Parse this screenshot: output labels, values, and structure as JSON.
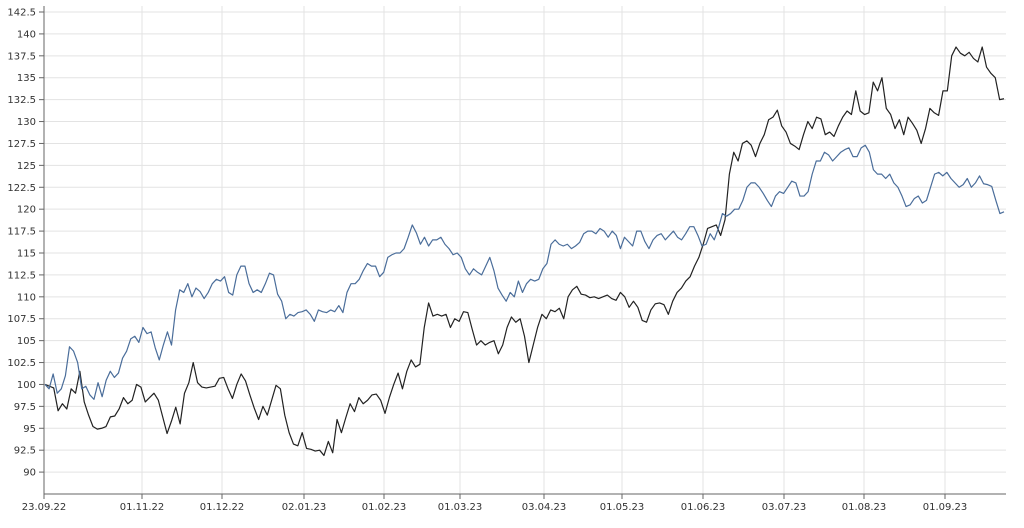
{
  "chart_data": {
    "type": "line",
    "title": "",
    "xlabel": "",
    "ylabel": "",
    "ylim": [
      87.5,
      142.5
    ],
    "yticks": [
      "142.5",
      "140",
      "137.5",
      "135",
      "132.5",
      "130",
      "127.5",
      "125",
      "122.5",
      "120",
      "117.5",
      "115",
      "112.5",
      "110",
      "107.5",
      "105",
      "102.5",
      "100",
      "97.5",
      "95",
      "92.5",
      "90"
    ],
    "xticks": [
      "23.09.22",
      "01.11.22",
      "01.12.22",
      "02.01.23",
      "01.02.23",
      "01.03.23",
      "03.04.23",
      "01.05.23",
      "01.06.23",
      "03.07.23",
      "01.08.23",
      "01.09.23"
    ],
    "grid": true,
    "legend": "none",
    "series": [
      {
        "color": "#222222",
        "values": [
          100,
          99.8,
          99.6,
          97,
          97.8,
          97.2,
          99.5,
          99,
          101.5,
          98,
          96.5,
          95.2,
          94.9,
          95,
          95.2,
          96.3,
          96.4,
          97.2,
          98.5,
          97.8,
          98.2,
          100,
          99.7,
          98,
          98.5,
          99,
          98.2,
          96.3,
          94.4,
          95.8,
          97.4,
          95.5,
          99,
          100.2,
          102.5,
          100.2,
          99.7,
          99.6,
          99.7,
          99.8,
          100.7,
          100.8,
          99.5,
          98.4,
          100,
          101.2,
          100.4,
          98.8,
          97.3,
          96,
          97.5,
          96.5,
          98.2,
          99.9,
          99.5,
          96.5,
          94.5,
          93.2,
          93,
          94.5,
          92.7,
          92.6,
          92.4,
          92.5,
          91.9,
          93.5,
          92.2,
          96,
          94.5,
          96.2,
          97.8,
          96.9,
          98.5,
          97.8,
          98.2,
          98.8,
          98.9,
          98.2,
          96.7,
          98.5,
          100,
          101.3,
          99.5,
          101.5,
          102.8,
          102,
          102.3,
          106.5,
          109.3,
          107.8,
          108,
          107.8,
          108,
          106.5,
          107.5,
          107.2,
          108.3,
          108.2,
          106.3,
          104.5,
          105,
          104.5,
          104.8,
          105,
          103.5,
          104.5,
          106.5,
          107.7,
          107.1,
          107.5,
          105.5,
          102.5,
          104.5,
          106.5,
          108,
          107.5,
          108.5,
          108.3,
          108.7,
          107.5,
          110,
          110.8,
          111.2,
          110.3,
          110.2,
          109.9,
          110,
          109.8,
          110,
          110.2,
          109.8,
          109.6,
          110.5,
          110,
          108.8,
          109.5,
          108.8,
          107.3,
          107.1,
          108.5,
          109.2,
          109.3,
          109.1,
          108,
          109.5,
          110.5,
          111,
          111.8,
          112.3,
          113.5,
          114.5,
          116,
          117.8,
          118,
          118.2,
          117,
          118.8,
          124,
          126.5,
          125.5,
          127.5,
          127.8,
          127.3,
          126,
          127.5,
          128.5,
          130.2,
          130.5,
          131.3,
          129.5,
          128.8,
          127.5,
          127.2,
          126.8,
          128.5,
          130,
          129.2,
          130.5,
          130.3,
          128.5,
          128.8,
          128.3,
          129.5,
          130.5,
          131.2,
          130.8,
          133.5,
          131.2,
          130.8,
          131,
          134.5,
          133.5,
          135,
          131.5,
          130.8,
          129.2,
          130.2,
          128.5,
          130.5,
          129.8,
          129,
          127.5,
          129.2,
          131.5,
          131,
          130.7,
          133.5,
          133.5,
          137.5,
          138.5,
          137.8,
          137.5,
          137.9,
          137.2,
          136.8,
          138.5,
          136.2,
          135.5,
          135,
          132.5,
          132.6
        ]
      },
      {
        "color": "#4a6d9a",
        "values": [
          100,
          99.5,
          101.2,
          99,
          99.5,
          101,
          104.3,
          103.8,
          102.5,
          99.5,
          99.8,
          98.8,
          98.3,
          100.2,
          98.6,
          100.5,
          101.5,
          100.8,
          101.3,
          103,
          103.8,
          105.2,
          105.5,
          104.8,
          106.5,
          105.8,
          106,
          104.2,
          102.8,
          104.5,
          106,
          104.5,
          108.5,
          110.8,
          110.5,
          111.5,
          110,
          111,
          110.6,
          109.8,
          110.5,
          111.5,
          112,
          111.8,
          112.3,
          110.5,
          110.2,
          112.5,
          113.5,
          113.5,
          111.5,
          110.5,
          110.8,
          110.5,
          111.5,
          112.7,
          112.5,
          110.3,
          109.5,
          107.5,
          108,
          107.8,
          108.2,
          108.3,
          108.5,
          108,
          107.2,
          108.5,
          108.3,
          108.2,
          108.5,
          108.3,
          109,
          108.2,
          110.5,
          111.5,
          111.5,
          112,
          113,
          113.8,
          113.5,
          113.5,
          112.3,
          112.8,
          114.5,
          114.8,
          115,
          115,
          115.5,
          116.8,
          118.2,
          117.3,
          116,
          116.8,
          115.8,
          116.5,
          116.5,
          116.8,
          116,
          115.5,
          114.8,
          115,
          114.5,
          113.2,
          112.5,
          113.2,
          112.8,
          112.5,
          113.5,
          114.5,
          113,
          111,
          110.2,
          109.5,
          110.5,
          110,
          111.8,
          110.5,
          111.5,
          112,
          111.8,
          112,
          113.2,
          113.8,
          116,
          116.5,
          116,
          115.8,
          116,
          115.5,
          115.8,
          116.2,
          117.2,
          117.5,
          117.5,
          117.2,
          117.8,
          117.5,
          116.8,
          117.5,
          117,
          115.5,
          116.8,
          116.3,
          115.8,
          117.5,
          117.5,
          116.3,
          115.5,
          116.5,
          117,
          117.2,
          116.5,
          117,
          117.5,
          116.8,
          116.5,
          117.2,
          118,
          118,
          117,
          115.8,
          116,
          117.2,
          116.5,
          117.8,
          119.5,
          119.2,
          119.5,
          120,
          120,
          121,
          122.5,
          123,
          123,
          122.5,
          121.8,
          121,
          120.3,
          121.5,
          122,
          121.8,
          122.5,
          123.2,
          123,
          121.5,
          121.5,
          122,
          124,
          125.5,
          125.5,
          126.5,
          126.2,
          125.5,
          126,
          126.5,
          126.8,
          127,
          126,
          126,
          127,
          127.3,
          126.5,
          124.5,
          124,
          124,
          123.5,
          124,
          123,
          122.5,
          121.5,
          120.3,
          120.5,
          121.2,
          121.5,
          120.7,
          121,
          122.5,
          124,
          124.2,
          123.8,
          124.2,
          123.5,
          123,
          122.5,
          122.8,
          123.5,
          122.5,
          123,
          123.8,
          122.9,
          122.8,
          122.6,
          121,
          119.5,
          119.7
        ]
      }
    ]
  }
}
